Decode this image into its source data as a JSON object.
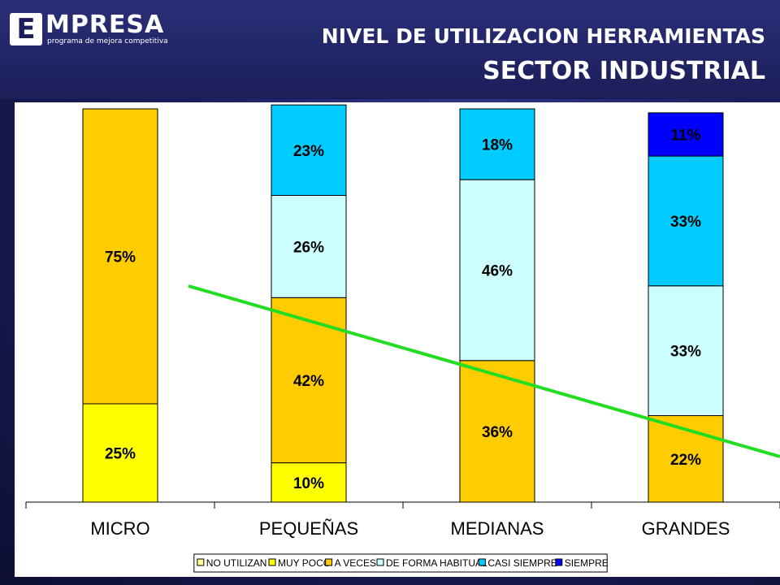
{
  "header": {
    "logo_letter": "E",
    "logo_word": "MPRESA",
    "logo_tagline": "programa de mejora competitiva",
    "title_line1": "NIVEL DE UTILIZACION HERRAMIENTAS",
    "title_line2": "SECTOR INDUSTRIAL"
  },
  "chart_data": {
    "type": "bar",
    "stacked": true,
    "categories": [
      "MICRO",
      "PEQUEÑAS",
      "MEDIANAS",
      "GRANDES"
    ],
    "ylim": [
      0,
      100
    ],
    "legend_position": "bottom",
    "series": [
      {
        "name": "NO UTILIZAN",
        "color": "#FFFF99",
        "values": [
          0,
          0,
          0,
          0
        ],
        "labels": [
          "",
          "",
          "",
          ""
        ]
      },
      {
        "name": "MUY POCO",
        "color": "#FFFF00",
        "values": [
          25,
          10,
          0,
          0
        ],
        "labels": [
          "25%",
          "10%",
          "",
          ""
        ]
      },
      {
        "name": "A VECES",
        "color": "#FFCC00",
        "values": [
          75,
          42,
          36,
          22
        ],
        "labels": [
          "75%",
          "42%",
          "36%",
          "22%"
        ]
      },
      {
        "name": "DE FORMA HABITUAL",
        "color": "#CCFFFF",
        "values": [
          0,
          26,
          46,
          33
        ],
        "labels": [
          "",
          "26%",
          "46%",
          "33%"
        ]
      },
      {
        "name": "CASI SIEMPRE",
        "color": "#00CCFF",
        "values": [
          0,
          23,
          18,
          33
        ],
        "labels": [
          "",
          "23%",
          "18%",
          "33%"
        ]
      },
      {
        "name": "SIEMPRE",
        "color": "#0000FF",
        "values": [
          0,
          0,
          0,
          11
        ],
        "labels": [
          "",
          "",
          "",
          "11%"
        ]
      }
    ],
    "trend_line": {
      "color": "#22DD22"
    }
  }
}
